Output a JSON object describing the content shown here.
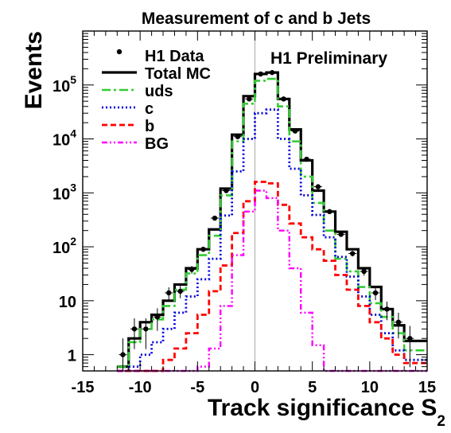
{
  "chart_data": {
    "type": "histogram-step",
    "title": "Measurement of c and b Jets",
    "xlabel": "Track significance S",
    "xlabel_subscript": "2",
    "ylabel": "Events",
    "annotation": "H1 Preliminary",
    "yscale": "log",
    "xlim": [
      -15,
      15
    ],
    "ylim": [
      0.5,
      1000000
    ],
    "x_ticks": [
      -15,
      -10,
      -5,
      0,
      5,
      10,
      15
    ],
    "y_ticks": [
      {
        "value": 1,
        "base": "1",
        "exp": ""
      },
      {
        "value": 10,
        "base": "10",
        "exp": ""
      },
      {
        "value": 100,
        "base": "10",
        "exp": "2"
      },
      {
        "value": 1000,
        "base": "10",
        "exp": "3"
      },
      {
        "value": 10000,
        "base": "10",
        "exp": "4"
      },
      {
        "value": 100000,
        "base": "10",
        "exp": "5"
      }
    ],
    "bin_edges": [
      -12,
      -11,
      -10,
      -9,
      -8,
      -7,
      -6,
      -5,
      -4,
      -3,
      -2,
      -1,
      0,
      1,
      2,
      3,
      4,
      5,
      6,
      7,
      8,
      9,
      10,
      11,
      12,
      13,
      14,
      15
    ],
    "data_x": [
      -11.5,
      -10.5,
      -9.5,
      -8.5,
      -7.5,
      -6.5,
      -5.5,
      -4.5,
      -3.5,
      -2.5,
      -1.5,
      -0.5,
      0.5,
      1.5,
      2.5,
      3.5,
      4.5,
      5.5,
      6.5,
      7.5,
      8.5,
      9.5,
      10.5,
      11.5,
      12.5,
      13.5
    ],
    "data": [
      1.0,
      3.0,
      3.0,
      5.0,
      14.0,
      15.0,
      38.0,
      90.0,
      340.0,
      1100.0,
      11000.0,
      55000.0,
      160000.0,
      170000.0,
      55000.0,
      14000.0,
      4200.0,
      1300.0,
      450.0,
      170.0,
      75.0,
      35.0,
      14.0,
      7.0,
      4.0,
      2.0
    ],
    "series": [
      {
        "name": "Total MC",
        "color": "#000000",
        "dash": "",
        "width": 3.2,
        "values": [
          0.6,
          2.0,
          4.0,
          5.5,
          10.0,
          20.0,
          40.0,
          90.0,
          210.0,
          1200.0,
          12000.0,
          62000.0,
          160000.0,
          170000.0,
          55000.0,
          15000.0,
          4000.0,
          1100.0,
          450.0,
          190.0,
          90.0,
          40.0,
          18.0,
          7.0,
          3.5,
          1.8,
          1.8
        ]
      },
      {
        "name": "uds",
        "color": "#33cc33",
        "dash": "11,4,3,4",
        "width": 2.6,
        "values": [
          0.6,
          1.7,
          3.0,
          4.5,
          8.0,
          16.0,
          32.0,
          70.0,
          160.0,
          900.0,
          9000.0,
          45000.0,
          120000.0,
          130000.0,
          40000.0,
          9000.0,
          2000.0,
          650.0,
          200.0,
          60.0,
          35.0,
          18.0,
          9.0,
          5.0,
          2.5,
          1.2,
          1.2
        ]
      },
      {
        "name": "c",
        "color": "#0000dd",
        "dash": "2,3",
        "width": 2.8,
        "values": [
          0.5,
          0.6,
          1.0,
          1.7,
          3.0,
          6.0,
          12.0,
          25.0,
          60.0,
          380.0,
          2500.0,
          10000.0,
          30000.0,
          35000.0,
          10000.0,
          2800.0,
          900.0,
          390.0,
          150.0,
          65.0,
          28.0,
          12.0,
          5.5,
          2.5,
          1.2,
          0.8,
          0.8
        ]
      },
      {
        "name": "b",
        "color": "#ff0000",
        "dash": "7,4",
        "width": 2.8,
        "values": [
          0.5,
          0.5,
          0.5,
          0.5,
          0.8,
          1.3,
          2.5,
          5.5,
          15.0,
          45.0,
          180.0,
          700.0,
          1600.0,
          1500.0,
          600.0,
          270.0,
          150.0,
          90.0,
          55.0,
          30.0,
          16.0,
          8.0,
          4.0,
          2.0,
          1.0,
          0.7,
          0.7
        ]
      },
      {
        "name": "BG",
        "color": "#ff00ff",
        "dash": "7,3,2,3,2,3",
        "width": 2.4,
        "values": [
          0.5,
          0.5,
          0.5,
          0.5,
          0.5,
          0.5,
          0.5,
          0.6,
          1.3,
          8.0,
          70.0,
          450.0,
          1100.0,
          800.0,
          200.0,
          40.0,
          6.0,
          1.5,
          0.5,
          0.5,
          0.5,
          0.5,
          0.5,
          0.5,
          0.5,
          0.5,
          0.5
        ]
      }
    ],
    "legend": [
      {
        "label": "H1 Data",
        "marker": "point"
      },
      {
        "label": "Total MC",
        "marker": "line",
        "series": 0
      },
      {
        "label": "uds",
        "marker": "line",
        "series": 1
      },
      {
        "label": "c",
        "marker": "line",
        "series": 2
      },
      {
        "label": "b",
        "marker": "line",
        "series": 3
      },
      {
        "label": "BG",
        "marker": "line",
        "series": 4
      }
    ],
    "legend_placement": "top-left",
    "grid": false
  }
}
